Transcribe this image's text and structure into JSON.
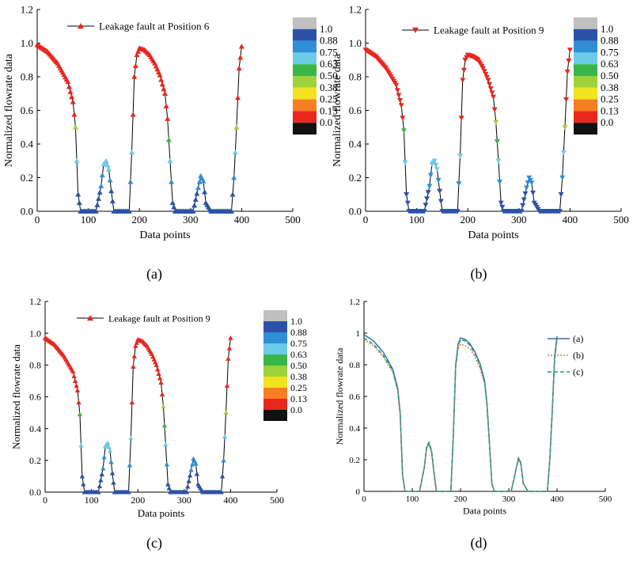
{
  "colors": {
    "marker": "#e8261f",
    "axis": "#000000",
    "colorbar": [
      "#111111",
      "#e8261f",
      "#f57f22",
      "#f1e31f",
      "#9ed23a",
      "#3ab54a",
      "#6ccbe6",
      "#2e8fd6",
      "#2c52a8",
      "#c0c0c0"
    ],
    "line_a": "#2a6fbf",
    "line_b": "#d97a3c",
    "line_c": "#1f9e73"
  },
  "chart_data": [
    {
      "type": "scatter",
      "panel_label": "(a)",
      "legend": "Leakage fault at Position 6",
      "marker": "triangle-up",
      "xlabel": "Data points",
      "ylabel": "Normalized flowrate data",
      "xlim": [
        0,
        500
      ],
      "ylim": [
        0,
        1.2
      ],
      "xticks": [
        "0",
        "100",
        "200",
        "300",
        "400",
        "500"
      ],
      "yticks": [
        "0.0",
        "0.2",
        "0.4",
        "0.6",
        "0.8",
        "1.0",
        "1.2"
      ],
      "colorbar_ticks": [
        "1.0",
        "0.88",
        "0.75",
        "0.63",
        "0.50",
        "0.38",
        "0.25",
        "0.13",
        "0.0"
      ],
      "peaks": [
        0.3,
        0.21
      ],
      "series": [
        {
          "x": [
            0,
            20,
            40,
            60,
            70,
            75,
            80,
            85,
            90,
            100,
            110,
            115,
            125,
            130,
            135,
            140,
            145,
            150,
            160,
            180,
            185,
            190,
            195,
            200,
            210,
            220,
            230,
            240,
            250,
            255,
            260,
            265,
            270,
            290,
            305,
            315,
            320,
            325,
            330,
            340,
            360,
            380,
            385,
            390,
            395,
            400
          ],
          "y": [
            0.99,
            0.95,
            0.88,
            0.77,
            0.65,
            0.5,
            0.1,
            0.0,
            0.0,
            0.0,
            0.0,
            0.0,
            0.15,
            0.28,
            0.3,
            0.25,
            0.12,
            0.0,
            0.0,
            0.0,
            0.35,
            0.8,
            0.93,
            0.97,
            0.96,
            0.93,
            0.88,
            0.81,
            0.7,
            0.55,
            0.3,
            0.05,
            0.0,
            0.0,
            0.0,
            0.14,
            0.21,
            0.18,
            0.05,
            0.0,
            0.0,
            0.0,
            0.2,
            0.5,
            0.85,
            0.98
          ]
        }
      ]
    },
    {
      "type": "scatter",
      "panel_label": "(b)",
      "legend": "Leakage fault at Position 9",
      "marker": "triangle-down",
      "xlabel": "Data points",
      "ylabel": "Normalized flowrate data",
      "xlim": [
        0,
        500
      ],
      "ylim": [
        0,
        1.2
      ],
      "xticks": [
        "0",
        "100",
        "200",
        "300",
        "400",
        "500"
      ],
      "yticks": [
        "0.0",
        "0.2",
        "0.4",
        "0.6",
        "0.8",
        "1.0",
        "1.2"
      ],
      "colorbar_ticks": [
        "1.0",
        "0.88",
        "0.75",
        "0.63",
        "0.50",
        "0.38",
        "0.25",
        "0.13",
        "0.0"
      ],
      "peaks": [
        0.3,
        0.2
      ],
      "series": [
        {
          "x": [
            0,
            20,
            40,
            60,
            70,
            75,
            80,
            85,
            90,
            100,
            110,
            115,
            125,
            130,
            135,
            140,
            145,
            150,
            160,
            180,
            185,
            190,
            195,
            200,
            210,
            220,
            230,
            240,
            250,
            255,
            260,
            265,
            270,
            290,
            305,
            315,
            320,
            325,
            330,
            340,
            360,
            380,
            385,
            390,
            395,
            400
          ],
          "y": [
            0.96,
            0.92,
            0.85,
            0.75,
            0.63,
            0.48,
            0.1,
            0.0,
            0.0,
            0.0,
            0.0,
            0.0,
            0.15,
            0.28,
            0.3,
            0.25,
            0.12,
            0.0,
            0.0,
            0.0,
            0.33,
            0.78,
            0.9,
            0.93,
            0.92,
            0.9,
            0.85,
            0.78,
            0.68,
            0.53,
            0.3,
            0.05,
            0.0,
            0.0,
            0.0,
            0.14,
            0.2,
            0.17,
            0.05,
            0.0,
            0.0,
            0.0,
            0.2,
            0.5,
            0.83,
            0.96
          ]
        }
      ]
    },
    {
      "type": "scatter",
      "panel_label": "(c)",
      "legend": "Leakage fault at Position 9",
      "marker": "triangle-up",
      "xlabel": "Data points",
      "ylabel": "Normalized flowrate data",
      "xlim": [
        0,
        500
      ],
      "ylim": [
        0,
        1.2
      ],
      "xticks": [
        "0",
        "100",
        "200",
        "300",
        "400",
        "500"
      ],
      "yticks": [
        "0.0",
        "0.2",
        "0.4",
        "0.6",
        "0.8",
        "1.0",
        "1.2"
      ],
      "colorbar_ticks": [
        "1.0",
        "0.88",
        "0.75",
        "0.63",
        "0.50",
        "0.38",
        "0.25",
        "0.13",
        "0.0"
      ],
      "peaks": [
        0.31,
        0.21
      ],
      "series": [
        {
          "x": [
            0,
            20,
            40,
            60,
            70,
            75,
            80,
            85,
            90,
            100,
            110,
            115,
            125,
            130,
            135,
            140,
            145,
            150,
            160,
            180,
            185,
            190,
            195,
            200,
            210,
            220,
            230,
            240,
            250,
            255,
            260,
            265,
            270,
            290,
            305,
            315,
            320,
            325,
            330,
            340,
            360,
            380,
            385,
            390,
            395,
            400
          ],
          "y": [
            0.97,
            0.93,
            0.86,
            0.76,
            0.64,
            0.49,
            0.1,
            0.0,
            0.0,
            0.0,
            0.0,
            0.0,
            0.15,
            0.29,
            0.31,
            0.26,
            0.12,
            0.0,
            0.0,
            0.0,
            0.34,
            0.79,
            0.92,
            0.96,
            0.95,
            0.92,
            0.87,
            0.8,
            0.69,
            0.54,
            0.3,
            0.05,
            0.0,
            0.0,
            0.0,
            0.14,
            0.21,
            0.18,
            0.05,
            0.0,
            0.0,
            0.0,
            0.2,
            0.5,
            0.84,
            0.97
          ]
        }
      ]
    },
    {
      "type": "line",
      "panel_label": "(d)",
      "xlabel": "Data points",
      "ylabel": "Normalized flowrate data",
      "xlim": [
        0,
        500
      ],
      "ylim": [
        0,
        1.2
      ],
      "xticks": [
        "0",
        "100",
        "200",
        "300",
        "400",
        "500"
      ],
      "yticks": [
        "0",
        "0.2",
        "0.4",
        "0.6",
        "0.8",
        "1",
        "1.2"
      ],
      "legend_position": "top-right",
      "series": [
        {
          "name": "(a)",
          "style": "solid",
          "x": [
            0,
            20,
            40,
            60,
            70,
            75,
            80,
            85,
            100,
            115,
            125,
            130,
            135,
            140,
            145,
            150,
            180,
            185,
            190,
            195,
            200,
            210,
            220,
            230,
            240,
            250,
            255,
            260,
            265,
            270,
            305,
            315,
            320,
            325,
            330,
            340,
            380,
            385,
            390,
            395,
            400
          ],
          "y": [
            0.99,
            0.95,
            0.88,
            0.77,
            0.65,
            0.5,
            0.1,
            0.0,
            0.0,
            0.0,
            0.15,
            0.28,
            0.3,
            0.25,
            0.12,
            0.0,
            0.0,
            0.35,
            0.8,
            0.93,
            0.97,
            0.96,
            0.93,
            0.88,
            0.81,
            0.7,
            0.55,
            0.3,
            0.05,
            0.0,
            0.0,
            0.14,
            0.21,
            0.18,
            0.05,
            0.0,
            0.0,
            0.2,
            0.5,
            0.85,
            0.98
          ]
        },
        {
          "name": "(b)",
          "style": "dotted",
          "x": [
            0,
            20,
            40,
            60,
            70,
            75,
            80,
            85,
            100,
            115,
            125,
            130,
            135,
            140,
            145,
            150,
            180,
            185,
            190,
            195,
            200,
            210,
            220,
            230,
            240,
            250,
            255,
            260,
            265,
            270,
            305,
            315,
            320,
            325,
            330,
            340,
            380,
            385,
            390,
            395,
            400
          ],
          "y": [
            0.96,
            0.92,
            0.85,
            0.75,
            0.63,
            0.48,
            0.1,
            0.0,
            0.0,
            0.0,
            0.15,
            0.28,
            0.3,
            0.25,
            0.12,
            0.0,
            0.0,
            0.33,
            0.78,
            0.9,
            0.93,
            0.92,
            0.9,
            0.85,
            0.78,
            0.68,
            0.53,
            0.3,
            0.05,
            0.0,
            0.0,
            0.14,
            0.2,
            0.17,
            0.05,
            0.0,
            0.0,
            0.2,
            0.5,
            0.83,
            0.96
          ]
        },
        {
          "name": "(c)",
          "style": "dashed",
          "x": [
            0,
            20,
            40,
            60,
            70,
            75,
            80,
            85,
            100,
            115,
            125,
            130,
            135,
            140,
            145,
            150,
            180,
            185,
            190,
            195,
            200,
            210,
            220,
            230,
            240,
            250,
            255,
            260,
            265,
            270,
            305,
            315,
            320,
            325,
            330,
            340,
            380,
            385,
            390,
            395,
            400
          ],
          "y": [
            0.97,
            0.93,
            0.86,
            0.76,
            0.64,
            0.49,
            0.1,
            0.0,
            0.0,
            0.0,
            0.15,
            0.29,
            0.31,
            0.26,
            0.12,
            0.0,
            0.0,
            0.34,
            0.79,
            0.92,
            0.96,
            0.95,
            0.92,
            0.87,
            0.8,
            0.69,
            0.54,
            0.3,
            0.05,
            0.0,
            0.0,
            0.14,
            0.21,
            0.18,
            0.05,
            0.0,
            0.0,
            0.2,
            0.5,
            0.84,
            0.97
          ]
        }
      ]
    }
  ]
}
